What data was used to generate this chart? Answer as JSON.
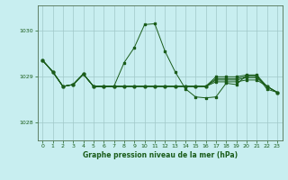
{
  "title": "Graphe pression niveau de la mer (hPa)",
  "background_color": "#c8eef0",
  "grid_color": "#a0c8c8",
  "line_color": "#1a5c1a",
  "xlim": [
    -0.5,
    23.5
  ],
  "ylim": [
    1027.6,
    1030.55
  ],
  "yticks": [
    1028,
    1029,
    1030
  ],
  "xticks": [
    0,
    1,
    2,
    3,
    4,
    5,
    6,
    7,
    8,
    9,
    10,
    11,
    12,
    13,
    14,
    15,
    16,
    17,
    18,
    19,
    20,
    21,
    22,
    23
  ],
  "series": [
    [
      1029.35,
      1029.1,
      1028.78,
      1028.82,
      1029.05,
      1028.78,
      1028.78,
      1028.78,
      1029.3,
      1029.63,
      1030.13,
      1030.15,
      1029.55,
      1029.1,
      1028.73,
      1028.55,
      1028.53,
      1028.55,
      1028.85,
      1028.82,
      1029.02,
      1029.02,
      1028.72,
      1028.65
    ],
    [
      1029.35,
      1029.1,
      1028.78,
      1028.82,
      1029.05,
      1028.78,
      1028.78,
      1028.78,
      1028.78,
      1028.78,
      1028.78,
      1028.78,
      1028.78,
      1028.78,
      1028.78,
      1028.78,
      1028.78,
      1028.88,
      1028.88,
      1028.88,
      1028.92,
      1028.92,
      1028.78,
      1028.65
    ],
    [
      1029.35,
      1029.1,
      1028.78,
      1028.82,
      1029.05,
      1028.78,
      1028.78,
      1028.78,
      1028.78,
      1028.78,
      1028.78,
      1028.78,
      1028.78,
      1028.78,
      1028.78,
      1028.78,
      1028.78,
      1028.92,
      1028.92,
      1028.92,
      1028.97,
      1028.97,
      1028.78,
      1028.65
    ],
    [
      1029.35,
      1029.1,
      1028.78,
      1028.82,
      1029.05,
      1028.78,
      1028.78,
      1028.78,
      1028.78,
      1028.78,
      1028.78,
      1028.78,
      1028.78,
      1028.78,
      1028.78,
      1028.78,
      1028.78,
      1028.95,
      1028.95,
      1028.95,
      1029.0,
      1029.0,
      1028.78,
      1028.65
    ],
    [
      1029.35,
      1029.1,
      1028.78,
      1028.82,
      1029.05,
      1028.78,
      1028.78,
      1028.78,
      1028.78,
      1028.78,
      1028.78,
      1028.78,
      1028.78,
      1028.78,
      1028.78,
      1028.78,
      1028.78,
      1028.99,
      1028.99,
      1028.99,
      1029.03,
      1029.03,
      1028.78,
      1028.65
    ]
  ]
}
